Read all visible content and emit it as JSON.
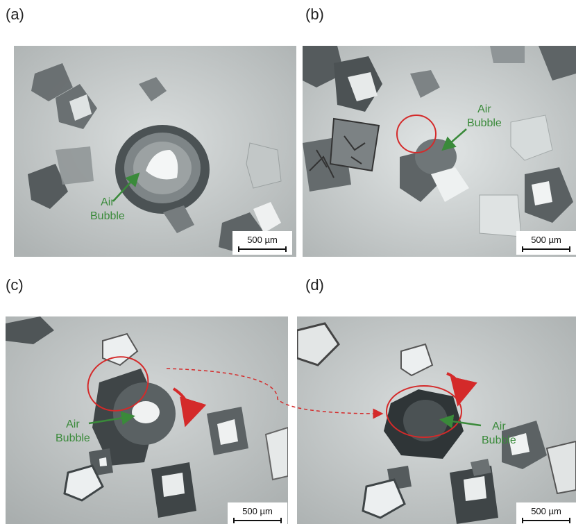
{
  "panels": [
    {
      "label": "(a)",
      "annotation": "Air\nBubble",
      "scale": "500 µm"
    },
    {
      "label": "(b)",
      "annotation": "Air\nBubble",
      "scale": "500 µm"
    },
    {
      "label": "(c)",
      "annotation": "Air\nBubble",
      "scale": "500 µm"
    },
    {
      "label": "(d)",
      "annotation": "Air\nBubble",
      "scale": "500 µm"
    }
  ],
  "colors": {
    "annotation": "#3a8a3a",
    "highlight": "#d42a2a",
    "background": "#c9cdcd",
    "crystal_dark": "#3e4446"
  }
}
